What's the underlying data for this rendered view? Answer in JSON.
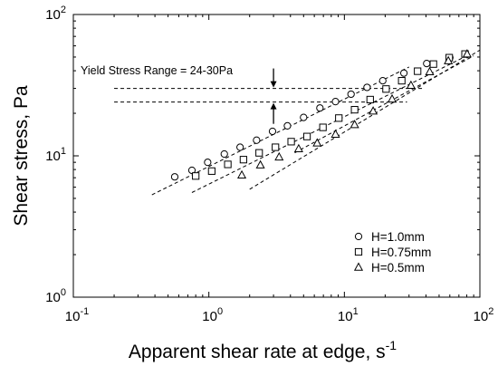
{
  "chart_data": {
    "type": "scatter",
    "xscale": "log",
    "yscale": "log",
    "xlim": [
      0.1,
      100
    ],
    "ylim": [
      1,
      100
    ],
    "xlabel": "Apparent shear rate at edge, s",
    "xlabel_sup": "-1",
    "ylabel": "Shear stress, Pa",
    "x_ticks": [
      {
        "value": 0.1,
        "base": "10",
        "exp": "-1"
      },
      {
        "value": 1,
        "base": "10",
        "exp": "0"
      },
      {
        "value": 10,
        "base": "10",
        "exp": "1"
      },
      {
        "value": 100,
        "base": "10",
        "exp": "2"
      }
    ],
    "y_ticks": [
      {
        "value": 1,
        "base": "10",
        "exp": "0"
      },
      {
        "value": 10,
        "base": "10",
        "exp": "1"
      },
      {
        "value": 100,
        "base": "10",
        "exp": "2"
      }
    ],
    "legend_position": "bottom-right",
    "series": [
      {
        "name": "H=1.0mm",
        "marker": "circle",
        "points": [
          [
            0.56,
            7.1
          ],
          [
            0.75,
            7.9
          ],
          [
            0.98,
            9.0
          ],
          [
            1.3,
            10.3
          ],
          [
            1.7,
            11.5
          ],
          [
            2.25,
            12.9
          ],
          [
            2.95,
            14.9
          ],
          [
            3.8,
            16.3
          ],
          [
            5.0,
            18.7
          ],
          [
            6.6,
            21.8
          ],
          [
            8.6,
            24.2
          ],
          [
            11.2,
            27.3
          ],
          [
            14.7,
            30.5
          ],
          [
            19.2,
            34.0
          ],
          [
            27.5,
            38.5
          ],
          [
            40.5,
            45.0
          ],
          [
            60.0,
            49.5
          ]
        ]
      },
      {
        "name": "H=0.75mm",
        "marker": "square",
        "points": [
          [
            0.8,
            7.2
          ],
          [
            1.05,
            7.8
          ],
          [
            1.38,
            8.7
          ],
          [
            1.8,
            9.4
          ],
          [
            2.35,
            10.5
          ],
          [
            3.1,
            11.5
          ],
          [
            4.05,
            12.6
          ],
          [
            5.3,
            13.7
          ],
          [
            6.95,
            15.9
          ],
          [
            9.1,
            18.5
          ],
          [
            11.9,
            21.2
          ],
          [
            15.5,
            25.0
          ],
          [
            20.3,
            29.7
          ],
          [
            26.5,
            34.0
          ],
          [
            34.7,
            39.7
          ],
          [
            45.4,
            44.6
          ],
          [
            59.4,
            49.5
          ],
          [
            77.7,
            52.5
          ]
        ]
      },
      {
        "name": "H=0.5mm",
        "marker": "triangle",
        "points": [
          [
            1.75,
            7.3
          ],
          [
            2.4,
            8.6
          ],
          [
            3.3,
            9.8
          ],
          [
            4.6,
            11.2
          ],
          [
            6.3,
            12.3
          ],
          [
            8.6,
            14.2
          ],
          [
            11.9,
            16.6
          ],
          [
            16.3,
            20.7
          ],
          [
            22.5,
            25.2
          ],
          [
            31.0,
            31.5
          ],
          [
            42.6,
            39.3
          ],
          [
            58.5,
            47.0
          ],
          [
            80.5,
            52.5
          ]
        ]
      }
    ],
    "fit_lines": [
      {
        "from": [
          0.38,
          5.3
        ],
        "to": [
          30,
          42.5
        ]
      },
      {
        "from": [
          0.75,
          5.5
        ],
        "to": [
          80,
          51
        ]
      },
      {
        "from": [
          2.0,
          5.8
        ],
        "to": [
          100,
          56
        ]
      },
      {
        "from": [
          4.3,
          10.5
        ],
        "to": [
          90,
          51
        ]
      }
    ],
    "yield_lines": [
      {
        "y": 30,
        "x_from": 0.2,
        "x_to": 38
      },
      {
        "y": 24,
        "x_from": 0.2,
        "x_to": 29
      }
    ],
    "annotation": {
      "text": "Yield Stress Range = 24-30Pa",
      "arrow_x": 3.0
    }
  }
}
